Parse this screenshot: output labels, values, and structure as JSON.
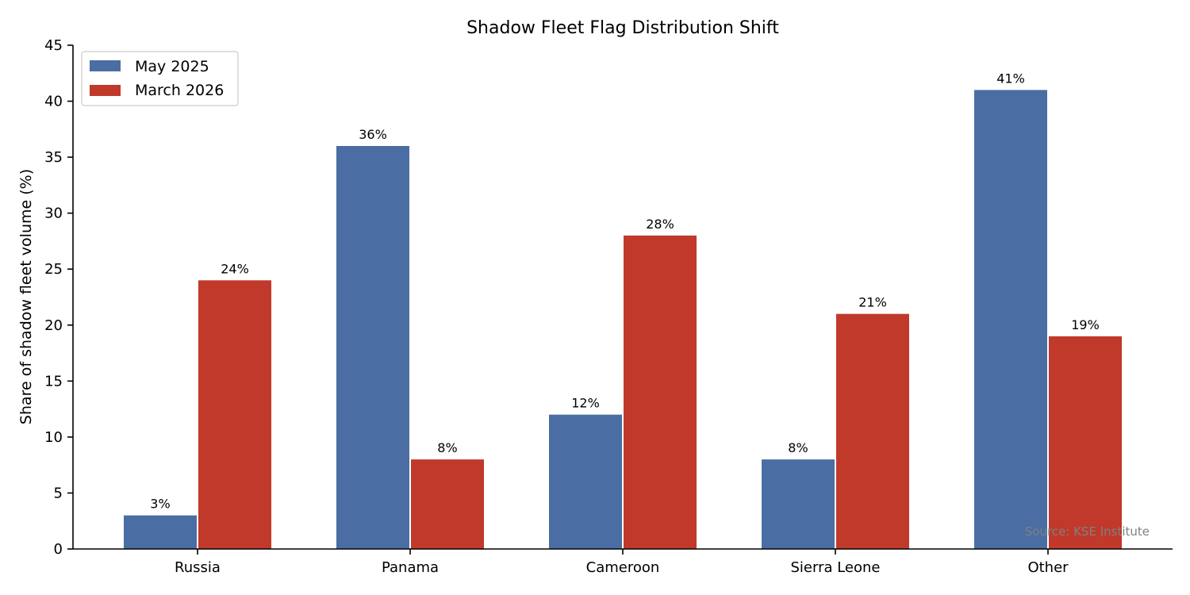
{
  "chart_data": {
    "type": "bar",
    "title": "Shadow Fleet Flag Distribution Shift",
    "xlabel": "",
    "ylabel": "Share of shadow fleet volume (%)",
    "categories": [
      "Russia",
      "Panama",
      "Cameroon",
      "Sierra Leone",
      "Other"
    ],
    "series": [
      {
        "name": "May 2025",
        "color": "#4a6ea3",
        "values": [
          3,
          36,
          12,
          8,
          41
        ],
        "labels": [
          "3%",
          "36%",
          "12%",
          "8%",
          "41%"
        ]
      },
      {
        "name": "March 2026",
        "color": "#c0392b",
        "values": [
          24,
          8,
          28,
          21,
          19
        ],
        "labels": [
          "24%",
          "8%",
          "28%",
          "21%",
          "19%"
        ]
      }
    ],
    "ylim": [
      0,
      45
    ],
    "yticks": [
      "0",
      "5",
      "10",
      "15",
      "20",
      "25",
      "30",
      "35",
      "40",
      "45"
    ],
    "ytick_values": [
      0,
      5,
      10,
      15,
      20,
      25,
      30,
      35,
      40,
      45
    ],
    "grid": false,
    "legend": "top-left",
    "source": "Source: KSE Institute"
  }
}
